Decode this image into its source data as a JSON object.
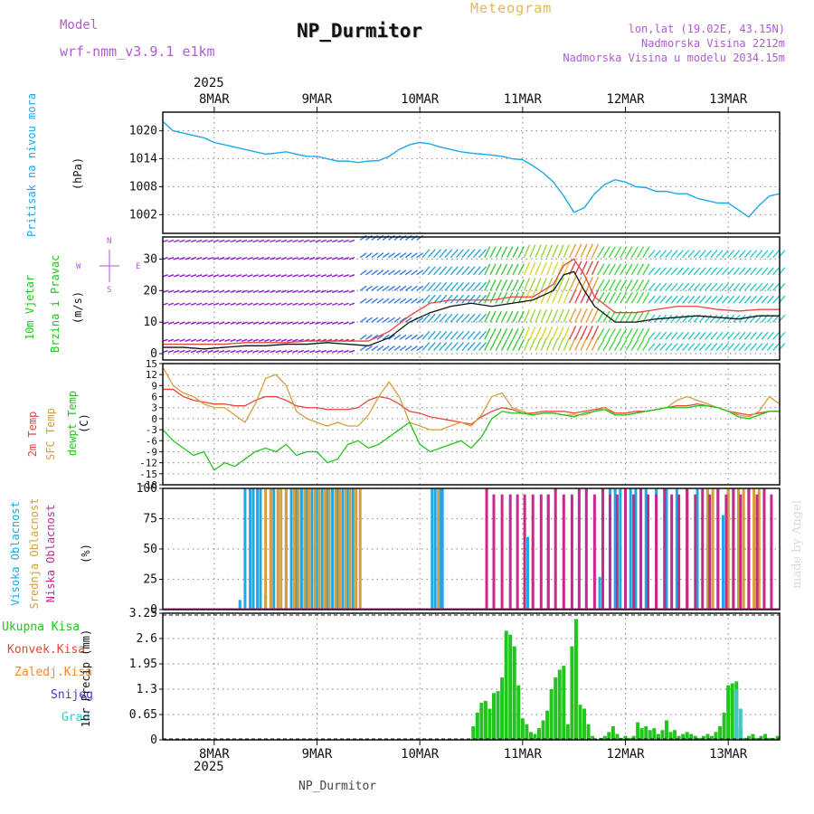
{
  "header": {
    "app_title": "Meteogram",
    "model_label": "Model",
    "model_name": "wrf-nmm_v3.9.1 e1km",
    "station_title": "NP_Durmitor",
    "lonlat": "lon,lat (19.02E, 43.15N)",
    "elevation": "Nadmorska Visina 2212m",
    "model_elevation": "Nadmorska Visina u modelu 2034.15m",
    "credit": "made by Angel",
    "footer_name": "NP_Durmitor",
    "year_top": "2025",
    "year_bottom": "2025"
  },
  "colors": {
    "pressure": "#1ea8e8",
    "temp2m": "#e8453c",
    "sfc": "#d4a03c",
    "dewpt": "#22c41e",
    "high_cloud": "#1ea8e8",
    "mid_cloud": "#d4a03c",
    "low_cloud": "#c8288c",
    "total_precip": "#22c41e",
    "conv_precip": "#e8453c",
    "frozen_precip": "#f08a2a",
    "snow": "#3c3cd8",
    "hail": "#3cc8c8",
    "model_label": "#b05ad8"
  },
  "chart_data": [
    {
      "type": "line",
      "panel": "pressure",
      "ylabel_left": "Pritisak na nivou mora",
      "ylabel_unit": "(hPa)",
      "ylim": [
        998,
        1024
      ],
      "yticks": [
        "1020",
        "1014",
        "1008",
        "1002"
      ],
      "ytick_values": [
        1020,
        1014,
        1008,
        1002
      ],
      "grid": true,
      "x": [
        7.5,
        7.6,
        7.7,
        7.8,
        7.9,
        8.0,
        8.1,
        8.2,
        8.3,
        8.4,
        8.5,
        8.6,
        8.7,
        8.8,
        8.9,
        9.0,
        9.1,
        9.2,
        9.3,
        9.4,
        9.5,
        9.6,
        9.7,
        9.8,
        9.9,
        10.0,
        10.1,
        10.2,
        10.3,
        10.4,
        10.5,
        10.6,
        10.7,
        10.8,
        10.9,
        11.0,
        11.1,
        11.2,
        11.3,
        11.4,
        11.5,
        11.6,
        11.7,
        11.8,
        11.9,
        12.0,
        12.1,
        12.2,
        12.3,
        12.4,
        12.5,
        12.6,
        12.7,
        12.8,
        12.9,
        13.0,
        13.1,
        13.2,
        13.3,
        13.4,
        13.5
      ],
      "values": [
        1022,
        1020,
        1019.5,
        1019,
        1018.5,
        1017.5,
        1017,
        1016.5,
        1016,
        1015.5,
        1015,
        1015.2,
        1015.5,
        1015,
        1014.5,
        1014.5,
        1014,
        1013.5,
        1013.5,
        1013.2,
        1013.5,
        1013.6,
        1014.5,
        1016,
        1017,
        1017.5,
        1017.2,
        1016.5,
        1016,
        1015.5,
        1015.2,
        1015,
        1014.8,
        1014.5,
        1014,
        1013.8,
        1012.5,
        1011,
        1009,
        1006,
        1002.5,
        1003.5,
        1006.5,
        1008.5,
        1009.5,
        1009,
        1008,
        1007.8,
        1007,
        1007,
        1006.5,
        1006.5,
        1005.5,
        1005,
        1004.5,
        1004.5,
        1003,
        1001.5,
        1004,
        1006,
        1006.5
      ]
    },
    {
      "type": "line",
      "panel": "wind",
      "ylabel_left": "10m Vjetar",
      "ylabel_left2": "Brzina i Pravac",
      "ylabel_unit": "(m/s)",
      "compass_labels": {
        "n": "N",
        "s": "S",
        "w": "W",
        "e": "E"
      },
      "ylim": [
        -2,
        37
      ],
      "yticks": [
        "30",
        "20",
        "10",
        "0"
      ],
      "ytick_values": [
        30,
        20,
        10,
        0
      ],
      "grid": true,
      "x": [
        7.5,
        7.7,
        7.9,
        8.1,
        8.3,
        8.5,
        8.7,
        8.9,
        9.1,
        9.3,
        9.5,
        9.7,
        9.9,
        10.1,
        10.3,
        10.5,
        10.7,
        10.9,
        11.1,
        11.3,
        11.4,
        11.5,
        11.6,
        11.7,
        11.9,
        12.1,
        12.3,
        12.5,
        12.7,
        12.9,
        13.1,
        13.3,
        13.5
      ],
      "series": [
        {
          "name": "",
          "values": [
            2,
            2,
            1.5,
            2,
            2.5,
            2.5,
            3,
            3,
            3.5,
            3,
            2.5,
            5,
            10,
            13,
            15,
            16,
            15,
            16,
            17,
            20,
            25,
            26,
            20,
            15,
            10,
            10,
            11,
            11.5,
            12,
            11.5,
            11,
            12,
            12
          ],
          "color": "#111111"
        },
        {
          "name": "",
          "values": [
            3,
            3,
            3,
            3,
            3.5,
            3.5,
            3.5,
            4,
            4,
            4,
            4,
            7,
            12,
            16,
            17,
            17,
            17,
            18,
            18,
            22,
            28,
            30,
            25,
            18,
            13,
            13,
            14,
            15,
            15,
            14,
            13.5,
            14,
            14
          ],
          "color": "#e8453c"
        }
      ]
    },
    {
      "type": "line",
      "panel": "temperature",
      "ylabel_left": "2m Temp",
      "ylabel_left2": "SFC Temp",
      "ylabel_left3": "dewpt Temp",
      "ylabel_unit": "(C)",
      "ylim": [
        -18,
        15
      ],
      "yticks": [
        "15",
        "12",
        "9",
        "6",
        "3",
        "0",
        "-3",
        "-6",
        "-9",
        "-12",
        "-15",
        "-18"
      ],
      "ytick_values": [
        15,
        12,
        9,
        6,
        3,
        0,
        -3,
        -6,
        -9,
        -12,
        -15,
        -18
      ],
      "grid": true,
      "x": [
        7.5,
        7.6,
        7.7,
        7.8,
        7.9,
        8.0,
        8.1,
        8.2,
        8.3,
        8.4,
        8.5,
        8.6,
        8.7,
        8.8,
        8.9,
        9.0,
        9.1,
        9.2,
        9.3,
        9.4,
        9.5,
        9.6,
        9.7,
        9.8,
        9.9,
        10.0,
        10.1,
        10.2,
        10.3,
        10.4,
        10.5,
        10.6,
        10.7,
        10.8,
        10.9,
        11.0,
        11.1,
        11.2,
        11.3,
        11.4,
        11.5,
        11.6,
        11.7,
        11.8,
        11.9,
        12.0,
        12.1,
        12.2,
        12.3,
        12.4,
        12.5,
        12.6,
        12.7,
        12.8,
        12.9,
        13.0,
        13.1,
        13.2,
        13.3,
        13.4,
        13.5
      ],
      "series": [
        {
          "name": "2m Temp",
          "values": [
            8,
            8,
            6,
            5,
            4.5,
            4,
            4,
            3.5,
            3.5,
            5,
            6,
            6,
            5,
            3.5,
            3,
            3,
            2.5,
            2.5,
            2.5,
            3,
            5,
            6,
            5.5,
            4,
            2,
            1.5,
            0.5,
            0,
            -0.5,
            -1,
            -1.5,
            0.5,
            2,
            3,
            2.5,
            1.5,
            1.5,
            2,
            2,
            2,
            1.5,
            2,
            2.5,
            3,
            1.5,
            1.5,
            2,
            2,
            2.5,
            3,
            3.5,
            3.5,
            4,
            3.5,
            3,
            2,
            1.5,
            1,
            1.5,
            2,
            2
          ],
          "color": "#e8453c"
        },
        {
          "name": "SFC Temp",
          "values": [
            14,
            9,
            7,
            6,
            4,
            3,
            3,
            1,
            -1,
            4,
            11,
            12,
            9,
            2,
            0,
            -1,
            -2,
            -1,
            -2,
            -2,
            1,
            6,
            10,
            6,
            -1,
            -2,
            -3,
            -3,
            -2,
            -1,
            -2,
            1,
            6,
            7,
            3,
            2,
            1,
            1.5,
            1.5,
            1,
            1,
            1,
            2,
            3,
            1,
            1,
            1.5,
            2,
            2.5,
            3,
            5,
            6,
            5,
            4,
            3,
            2,
            1,
            0.5,
            2,
            6,
            4
          ],
          "color": "#d4a03c"
        },
        {
          "name": "dewpt Temp",
          "values": [
            -3,
            -6,
            -8,
            -10,
            -9,
            -14,
            -12,
            -13,
            -11,
            -9,
            -8,
            -9,
            -7,
            -10,
            -9,
            -9,
            -12,
            -11,
            -7,
            -6,
            -8,
            -7,
            -5,
            -3,
            -1,
            -7,
            -9,
            -8,
            -7,
            -6,
            -8,
            -5,
            0,
            2,
            1.5,
            1.5,
            1,
            1.5,
            1.5,
            1,
            0.5,
            1.5,
            2,
            2.5,
            1,
            1,
            1.5,
            2,
            2.5,
            3,
            3,
            3,
            3.5,
            3.5,
            3,
            2,
            0.5,
            0,
            1,
            2,
            2
          ],
          "color": "#22c41e"
        }
      ]
    },
    {
      "type": "bar",
      "panel": "cloud",
      "ylabel_left": "Visoka Oblacnost",
      "ylabel_left2": "Srednja Oblacnost",
      "ylabel_left3": "Niska Oblacnost",
      "ylabel_unit": "(%)",
      "ylim": [
        0,
        100
      ],
      "yticks": [
        "100",
        "75",
        "50",
        "25",
        "0"
      ],
      "ytick_values": [
        100,
        75,
        50,
        25,
        0
      ],
      "grid": true,
      "series": [
        {
          "name": "Visoka Oblacnost",
          "color": "#1ea8e8",
          "x": [
            8.25,
            8.3,
            8.35,
            8.38,
            8.42,
            8.45,
            8.5,
            8.55,
            8.58,
            8.62,
            8.7,
            8.75,
            8.8,
            8.85,
            8.9,
            8.95,
            9.0,
            9.05,
            9.1,
            9.15,
            9.2,
            9.25,
            9.3,
            9.35,
            10.12,
            10.15,
            10.2,
            10.22,
            11.05,
            11.25,
            11.75,
            11.85,
            11.9,
            11.95,
            12.0,
            12.05,
            12.1,
            12.15,
            12.2,
            12.3,
            12.4,
            12.5,
            12.6,
            12.7,
            12.8,
            12.9,
            12.95,
            13.0,
            13.05,
            13.1,
            13.2
          ],
          "values": [
            8,
            100,
            100,
            100,
            100,
            100,
            12,
            100,
            100,
            100,
            100,
            100,
            100,
            100,
            100,
            100,
            100,
            100,
            100,
            100,
            100,
            100,
            100,
            100,
            100,
            100,
            100,
            100,
            60,
            95,
            27,
            100,
            100,
            100,
            100,
            100,
            100,
            100,
            100,
            100,
            100,
            100,
            100,
            100,
            100,
            100,
            78,
            100,
            100,
            100,
            100
          ]
        },
        {
          "name": "Srednja Oblacnost",
          "color": "#d4a03c",
          "x": [
            8.5,
            8.55,
            8.62,
            8.65,
            8.7,
            8.78,
            8.82,
            8.88,
            8.92,
            8.98,
            9.02,
            9.08,
            9.12,
            9.18,
            9.22,
            9.28,
            9.32,
            9.38,
            9.42,
            10.18,
            12.6,
            12.8,
            12.85,
            13.0,
            13.1,
            13.15,
            13.2,
            13.25,
            13.3,
            13.35
          ],
          "values": [
            100,
            100,
            100,
            100,
            100,
            100,
            100,
            100,
            100,
            100,
            100,
            100,
            100,
            100,
            100,
            100,
            100,
            100,
            100,
            100,
            100,
            100,
            100,
            100,
            100,
            100,
            100,
            100,
            100,
            100
          ]
        },
        {
          "name": "Niska Oblacnost",
          "color": "#c8288c",
          "x": [
            10.65,
            10.72,
            10.8,
            10.88,
            10.95,
            11.02,
            11.1,
            11.18,
            11.25,
            11.32,
            11.4,
            11.48,
            11.55,
            11.62,
            11.7,
            11.78,
            11.85,
            11.92,
            12.0,
            12.08,
            12.15,
            12.22,
            12.3,
            12.38,
            12.45,
            12.52,
            12.6,
            12.68,
            12.75,
            12.82,
            12.9,
            12.98,
            13.05,
            13.12,
            13.2,
            13.28,
            13.35,
            13.42
          ],
          "values": [
            100,
            95,
            95,
            95,
            95,
            95,
            95,
            95,
            95,
            100,
            95,
            95,
            100,
            100,
            95,
            100,
            95,
            95,
            100,
            95,
            100,
            95,
            95,
            100,
            95,
            95,
            100,
            95,
            100,
            95,
            100,
            95,
            100,
            95,
            100,
            95,
            100,
            95
          ]
        }
      ]
    },
    {
      "type": "bar",
      "panel": "precip",
      "ylabel_unit": "1hr Precip (mm)",
      "legend": [
        "Ukupna Kisa",
        "Konvek.Kisa",
        "Zaledj.Kisa",
        "Snijeg",
        "Grad"
      ],
      "ylim": [
        0,
        3.25
      ],
      "yticks": [
        "3.25",
        "2.6",
        "1.95",
        "1.3",
        "0.65",
        "0"
      ],
      "ytick_values": [
        3.25,
        2.6,
        1.95,
        1.3,
        0.65,
        0
      ],
      "grid": true,
      "x_tick_labels": [
        "8MAR",
        "9MAR",
        "10MAR",
        "11MAR",
        "12MAR",
        "13MAR"
      ],
      "x_tick_values": [
        8,
        9,
        10,
        11,
        12,
        13
      ],
      "series": [
        {
          "name": "Ukupna Kisa",
          "color": "#22c41e",
          "x": [
            10.52,
            10.56,
            10.6,
            10.64,
            10.68,
            10.72,
            10.76,
            10.8,
            10.84,
            10.88,
            10.92,
            10.96,
            11.0,
            11.04,
            11.08,
            11.12,
            11.16,
            11.2,
            11.24,
            11.28,
            11.32,
            11.36,
            11.4,
            11.44,
            11.48,
            11.52,
            11.56,
            11.6,
            11.64,
            11.68,
            11.72,
            11.76,
            11.8,
            11.84,
            11.88,
            11.92,
            11.96,
            12.0,
            12.04,
            12.08,
            12.12,
            12.16,
            12.2,
            12.24,
            12.28,
            12.32,
            12.36,
            12.4,
            12.44,
            12.48,
            12.52,
            12.56,
            12.6,
            12.64,
            12.68,
            12.72,
            12.76,
            12.8,
            12.84,
            12.88,
            12.92,
            12.96,
            13.0,
            13.04,
            13.08,
            13.12,
            13.16,
            13.2,
            13.24,
            13.28,
            13.32,
            13.36,
            13.4,
            13.44,
            13.48
          ],
          "values": [
            0.35,
            0.7,
            0.95,
            1.0,
            0.8,
            1.2,
            1.25,
            1.6,
            2.8,
            2.7,
            2.4,
            1.4,
            0.55,
            0.4,
            0.2,
            0.15,
            0.3,
            0.5,
            0.75,
            1.3,
            1.6,
            1.8,
            1.9,
            0.4,
            2.4,
            3.1,
            0.9,
            0.8,
            0.4,
            0.1,
            0.0,
            0.05,
            0.1,
            0.2,
            0.35,
            0.15,
            0.05,
            0.1,
            0.05,
            0.1,
            0.45,
            0.3,
            0.35,
            0.25,
            0.3,
            0.15,
            0.25,
            0.5,
            0.2,
            0.25,
            0.1,
            0.15,
            0.2,
            0.15,
            0.1,
            0.05,
            0.1,
            0.15,
            0.1,
            0.2,
            0.35,
            0.7,
            1.4,
            1.45,
            1.5,
            0.3,
            0.05,
            0.1,
            0.15,
            0.05,
            0.1,
            0.15,
            0.05,
            0.05,
            0.1
          ]
        },
        {
          "name": "Grad",
          "color": "#3cc8c8",
          "x": [
            13.08,
            13.12
          ],
          "values": [
            1.3,
            0.8
          ]
        }
      ]
    }
  ]
}
